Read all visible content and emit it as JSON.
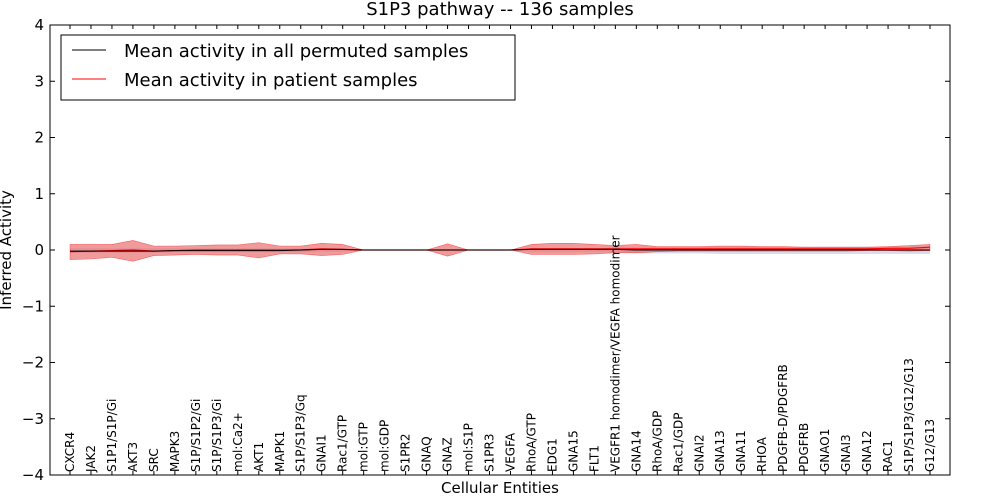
{
  "chart_data": {
    "type": "line",
    "title": "S1P3 pathway -- 136 samples",
    "xlabel": "Cellular Entities",
    "ylabel": "Inferred Activity",
    "ylim": [
      -4,
      4
    ],
    "yticks": [
      4,
      3,
      2,
      1,
      0,
      -1,
      -2,
      -3,
      -4
    ],
    "ytick_labels": [
      "4",
      "3",
      "2",
      "1",
      "0",
      "−1",
      "−2",
      "−3",
      "−4"
    ],
    "legend": {
      "placement": "top-left",
      "entries": [
        {
          "label": "Mean activity in all permuted samples",
          "color": "#000000"
        },
        {
          "label": "Mean activity in patient samples",
          "color": "#ff0000"
        }
      ]
    },
    "categories": [
      "CXCR4",
      "JAK2",
      "S1P1/S1P/Gi",
      "AKT3",
      "SRC",
      "MAPK3",
      "S1P/S1P2/Gi",
      "S1P/S1P3/Gi",
      "mol:Ca2+",
      "AKT1",
      "MAPK1",
      "S1P/S1P3/Gq",
      "GNAI1",
      "Rac1/GTP",
      "mol:GTP",
      "mol:GDP",
      "S1PR2",
      "GNAQ",
      "GNAZ",
      "mol:S1P",
      "S1PR3",
      "VEGFA",
      "RhoA/GTP",
      "EDG1",
      "GNA15",
      "FLT1",
      "VEGFR1 homodimer/VEGFA homodimer",
      "GNA14",
      "RhoA/GDP",
      "Rac1/GDP",
      "GNAI2",
      "GNA13",
      "GNA11",
      "RHOA",
      "PDGFB-D/PDGFRB",
      "PDGFRB",
      "GNAO1",
      "GNAI3",
      "GNA12",
      "RAC1",
      "S1P/S1P3/G12/G13",
      "G12/G13"
    ],
    "series": [
      {
        "name": "Mean activity in patient samples",
        "color": "#ff0000",
        "band_color": "#e87070",
        "values": [
          -0.03,
          -0.02,
          -0.01,
          0.0,
          -0.02,
          -0.01,
          0.0,
          0.0,
          0.0,
          0.0,
          0.0,
          0.0,
          0.02,
          0.01,
          0.0,
          0.0,
          0.0,
          0.0,
          0.0,
          0.0,
          0.0,
          0.0,
          0.02,
          0.02,
          0.02,
          0.02,
          0.02,
          0.02,
          0.02,
          0.02,
          0.02,
          0.02,
          0.02,
          0.02,
          0.02,
          0.02,
          0.02,
          0.02,
          0.02,
          0.03,
          0.03,
          0.05
        ],
        "upper": [
          0.1,
          0.1,
          0.1,
          0.17,
          0.07,
          0.07,
          0.08,
          0.09,
          0.09,
          0.13,
          0.07,
          0.07,
          0.12,
          0.1,
          0.0,
          0.0,
          0.0,
          0.0,
          0.11,
          0.0,
          0.0,
          0.0,
          0.1,
          0.12,
          0.12,
          0.1,
          0.08,
          0.1,
          0.06,
          0.06,
          0.06,
          0.07,
          0.07,
          0.06,
          0.06,
          0.05,
          0.05,
          0.05,
          0.05,
          0.06,
          0.08,
          0.1
        ],
        "lower": [
          -0.17,
          -0.16,
          -0.13,
          -0.2,
          -0.1,
          -0.09,
          -0.08,
          -0.09,
          -0.09,
          -0.14,
          -0.07,
          -0.07,
          -0.1,
          -0.08,
          0.0,
          0.0,
          0.0,
          0.0,
          -0.11,
          0.0,
          0.0,
          0.0,
          -0.08,
          -0.08,
          -0.08,
          -0.07,
          -0.05,
          -0.05,
          -0.03,
          -0.02,
          -0.02,
          -0.02,
          -0.02,
          -0.02,
          -0.02,
          -0.02,
          -0.02,
          -0.02,
          -0.01,
          -0.01,
          -0.02,
          -0.01
        ]
      },
      {
        "name": "Mean activity in all permuted samples",
        "color": "#000000",
        "band_color": "#b8bcd8",
        "values": [
          -0.02,
          -0.02,
          -0.02,
          -0.02,
          -0.02,
          -0.01,
          -0.01,
          -0.01,
          -0.01,
          -0.01,
          -0.01,
          0.0,
          0.01,
          0.01,
          0.0,
          0.0,
          0.0,
          0.0,
          0.0,
          0.0,
          0.0,
          0.0,
          0.01,
          0.01,
          0.01,
          0.01,
          0.01,
          0.0,
          0.0,
          0.0,
          0.0,
          0.0,
          0.0,
          0.0,
          0.0,
          0.0,
          0.0,
          0.0,
          0.0,
          0.0,
          0.0,
          0.0
        ],
        "upper": [
          0.03,
          0.03,
          0.03,
          0.03,
          0.03,
          0.03,
          0.03,
          0.03,
          0.03,
          0.03,
          0.03,
          0.03,
          0.03,
          0.03,
          0.0,
          0.0,
          0.0,
          0.0,
          0.0,
          0.0,
          0.0,
          0.0,
          0.03,
          0.03,
          0.03,
          0.03,
          0.05,
          0.05,
          0.05,
          0.05,
          0.05,
          0.06,
          0.06,
          0.06,
          0.06,
          0.06,
          0.06,
          0.06,
          0.06,
          0.06,
          0.06,
          0.06
        ],
        "lower": [
          -0.05,
          -0.05,
          -0.05,
          -0.05,
          -0.05,
          -0.04,
          -0.04,
          -0.04,
          -0.04,
          -0.04,
          -0.04,
          -0.04,
          -0.03,
          -0.03,
          0.0,
          0.0,
          0.0,
          0.0,
          0.0,
          0.0,
          0.0,
          0.0,
          -0.03,
          -0.03,
          -0.03,
          -0.03,
          -0.05,
          -0.06,
          -0.06,
          -0.06,
          -0.06,
          -0.07,
          -0.07,
          -0.07,
          -0.07,
          -0.07,
          -0.07,
          -0.07,
          -0.07,
          -0.07,
          -0.07,
          -0.07
        ]
      }
    ]
  }
}
